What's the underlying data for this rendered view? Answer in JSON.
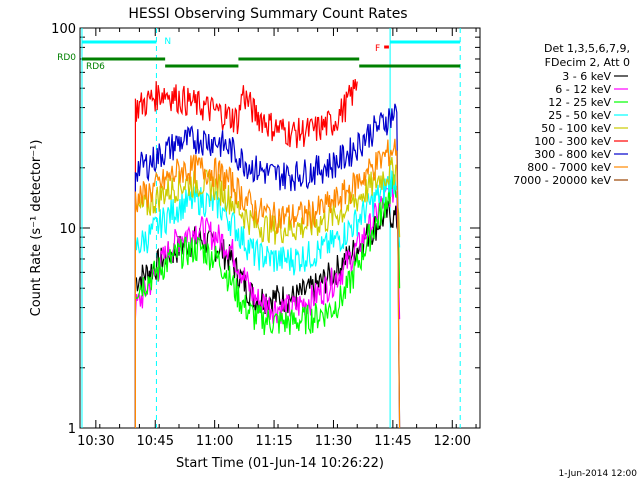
{
  "chart_data": {
    "type": "line",
    "title": "HESSI Observing Summary Count Rates",
    "xlabel": "Start Time (01-Jun-14 10:26:22)",
    "ylabel": "Count Rate (s⁻¹ detector⁻¹)",
    "y_scale": "log",
    "ylim": [
      1,
      100
    ],
    "y_ticks": [
      "1",
      "10",
      "100"
    ],
    "xlim": [
      "10:26",
      "12:07"
    ],
    "x_ticks": [
      "10:30",
      "10:45",
      "11:00",
      "11:15",
      "11:30",
      "11:45",
      "12:00"
    ],
    "grid": false,
    "legend_position": "right",
    "legend_header": [
      "Det 1,3,5,6,7,9,",
      "FDecim 2, Att 0"
    ],
    "series": [
      {
        "name": "3 - 6 keV",
        "color": "#000000",
        "x": [
          "10:40",
          "10:43",
          "10:47",
          "10:51",
          "10:56",
          "11:01",
          "11:04",
          "11:07",
          "11:10",
          "11:15",
          "11:20",
          "11:25",
          "11:30",
          "11:33",
          "11:36",
          "11:39",
          "11:42",
          "11:44",
          "11:46",
          "11:46.7"
        ],
        "y": [
          5.5,
          6,
          7,
          8,
          9,
          8,
          7,
          5.5,
          4.5,
          4.5,
          4.5,
          5,
          6,
          7,
          8,
          9.5,
          11,
          12,
          11,
          9
        ]
      },
      {
        "name": "6 - 12 keV",
        "color": "#ff00ff",
        "x": [
          "10:40",
          "10:43",
          "10:47",
          "10:51",
          "10:56",
          "11:01",
          "11:04",
          "11:07",
          "11:10",
          "11:15",
          "11:20",
          "11:25",
          "11:30",
          "11:33",
          "11:36",
          "11:39",
          "11:42",
          "11:44",
          "11:46",
          "11:46.7"
        ],
        "y": [
          4,
          5,
          7,
          9,
          10,
          9,
          8,
          6,
          4.5,
          4,
          4,
          4.5,
          5.5,
          6.5,
          8,
          10,
          13,
          15,
          16,
          3.5
        ]
      },
      {
        "name": "12 - 25 keV",
        "color": "#00ff00",
        "x": [
          "10:40",
          "10:43",
          "10:47",
          "10:51",
          "10:56",
          "11:01",
          "11:04",
          "11:07",
          "11:10",
          "11:15",
          "11:20",
          "11:25",
          "11:30",
          "11:33",
          "11:36",
          "11:39",
          "11:42",
          "11:44",
          "11:46",
          "11:46.7"
        ],
        "y": [
          5,
          5.5,
          6.5,
          7.5,
          8,
          7,
          5.5,
          4.2,
          3.6,
          3.4,
          3.4,
          3.6,
          4,
          4.8,
          6.5,
          9,
          12,
          15,
          17,
          5
        ]
      },
      {
        "name": "25 - 50 keV",
        "color": "#00ffff",
        "x": [
          "10:40",
          "10:43",
          "10:47",
          "10:51",
          "10:56",
          "11:01",
          "11:04",
          "11:07",
          "11:10",
          "11:15",
          "11:20",
          "11:25",
          "11:30",
          "11:33",
          "11:36",
          "11:39",
          "11:42",
          "11:44",
          "11:46",
          "11:46.7"
        ],
        "y": [
          8,
          9,
          11,
          13,
          14,
          13,
          11,
          9,
          7.5,
          7,
          7,
          7.5,
          8.5,
          9.5,
          11,
          13,
          15,
          17,
          18,
          8
        ]
      },
      {
        "name": "50 - 100 keV",
        "color": "#cccc00",
        "x": [
          "10:40",
          "10:43",
          "10:47",
          "10:51",
          "10:56",
          "11:01",
          "11:04",
          "11:07",
          "11:10",
          "11:15",
          "11:20",
          "11:25",
          "11:30",
          "11:33",
          "11:36",
          "11:39",
          "11:42",
          "11:44",
          "11:46",
          "11:46.7"
        ],
        "y": [
          12,
          13,
          15,
          16.5,
          17,
          16,
          14,
          12,
          10.5,
          10,
          10,
          10.5,
          11.5,
          12.5,
          14,
          16,
          18,
          19,
          20,
          9
        ]
      },
      {
        "name": "100 - 300 keV",
        "color": "#ff0000",
        "x": [
          "10:40",
          "10:43",
          "10:45",
          "10:47",
          "11:06",
          "11:07",
          "11:10",
          "11:15",
          "11:20",
          "11:25",
          "11:30",
          "11:33",
          "11:35",
          "11:36"
        ],
        "y": [
          40,
          43,
          46,
          48,
          35,
          48,
          38,
          32,
          30,
          31,
          34,
          41,
          48,
          54
        ]
      },
      {
        "name": "300 - 800 keV",
        "color": "#0000cc",
        "x": [
          "10:40",
          "10:43",
          "10:47",
          "10:51",
          "10:56",
          "11:01",
          "11:04",
          "11:07",
          "11:10",
          "11:15",
          "11:20",
          "11:25",
          "11:30",
          "11:33",
          "11:36",
          "11:39",
          "11:42",
          "11:44",
          "11:46",
          "11:46.7"
        ],
        "y": [
          20,
          21,
          24,
          27,
          28,
          27,
          25,
          22,
          20,
          18.5,
          18.5,
          19.5,
          21,
          23,
          26,
          30,
          33,
          36,
          38,
          1
        ]
      },
      {
        "name": "800 - 7000 keV",
        "color": "#ff8800",
        "x": [
          "10:40",
          "10:43",
          "10:47",
          "10:51",
          "10:56",
          "11:01",
          "11:04",
          "11:07",
          "11:10",
          "11:15",
          "11:20",
          "11:25",
          "11:30",
          "11:33",
          "11:36",
          "11:39",
          "11:42",
          "11:44",
          "11:46",
          "11:46.7"
        ],
        "y": [
          14,
          15,
          17,
          19.5,
          20,
          19,
          17,
          14.5,
          12.5,
          11.5,
          11.5,
          12,
          13.5,
          15,
          17,
          19.5,
          22,
          24,
          26,
          1
        ]
      },
      {
        "name": "7000 - 20000 keV",
        "color": "#994400",
        "x": [
          "10:40",
          "10:47"
        ],
        "y": [
          0,
          0
        ]
      }
    ],
    "vertical_lines": [
      {
        "time": "10:26.5",
        "style": "solid",
        "color": "#00ffff"
      },
      {
        "time": "10:45.3",
        "style": "dashed",
        "color": "#00ffff"
      },
      {
        "time": "11:44.3",
        "style": "solid",
        "color": "#00ffff"
      },
      {
        "time": "12:02",
        "style": "dashed",
        "color": "#00ffff"
      }
    ],
    "state_bars": [
      {
        "label": "N",
        "color": "#00ffff",
        "segments": [
          [
            "10:26.5",
            "10:45.3"
          ],
          [
            "11:44.3",
            "12:02"
          ]
        ]
      },
      {
        "label": "F",
        "color": "#ff0000",
        "segments": [
          [
            "11:42.8",
            "11:44"
          ]
        ]
      },
      {
        "label": "RD0",
        "color": "#008000",
        "segments": [
          [
            "10:26.5",
            "10:47.5"
          ],
          [
            "11:06",
            "11:36.5"
          ]
        ]
      },
      {
        "label": "RD6",
        "color": "#008000",
        "segments": [
          [
            "10:47.5",
            "11:06"
          ],
          [
            "11:36.5",
            "12:02"
          ]
        ]
      }
    ]
  },
  "footer_date": "1-Jun-2014 12:00"
}
